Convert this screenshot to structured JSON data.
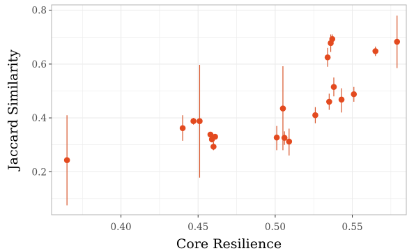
{
  "chart_data": {
    "type": "scatter",
    "xlabel": "Core Resilience",
    "ylabel": "Jaccard Similarity",
    "xlim": [
      0.355,
      0.585
    ],
    "ylim": [
      0.04,
      0.82
    ],
    "x_ticks": [
      0.4,
      0.45,
      0.5,
      0.55
    ],
    "x_tick_labels": [
      "0.40",
      "0.45",
      "0.50",
      "0.55"
    ],
    "y_ticks": [
      0.2,
      0.4,
      0.6,
      0.8
    ],
    "y_tick_labels": [
      "0.2",
      "0.4",
      "0.6",
      "0.8"
    ],
    "grid": true,
    "colors": {
      "point": "#e34a1f",
      "errorbar": "#d7552b",
      "grid": "#ebebeb",
      "border": "#b3b3b3"
    },
    "points": [
      {
        "x": 0.365,
        "y": 0.243,
        "ylo": 0.075,
        "yhi": 0.41
      },
      {
        "x": 0.44,
        "y": 0.362,
        "ylo": 0.315,
        "yhi": 0.41
      },
      {
        "x": 0.447,
        "y": 0.388,
        "ylo": 0.375,
        "yhi": 0.4
      },
      {
        "x": 0.451,
        "y": 0.388,
        "ylo": 0.178,
        "yhi": 0.597
      },
      {
        "x": 0.458,
        "y": 0.338,
        "ylo": 0.33,
        "yhi": 0.345
      },
      {
        "x": 0.459,
        "y": 0.32,
        "ylo": 0.31,
        "yhi": 0.33
      },
      {
        "x": 0.46,
        "y": 0.293,
        "ylo": 0.28,
        "yhi": 0.31
      },
      {
        "x": 0.461,
        "y": 0.33,
        "ylo": 0.32,
        "yhi": 0.34
      },
      {
        "x": 0.501,
        "y": 0.327,
        "ylo": 0.28,
        "yhi": 0.37
      },
      {
        "x": 0.505,
        "y": 0.435,
        "ylo": 0.28,
        "yhi": 0.592
      },
      {
        "x": 0.506,
        "y": 0.326,
        "ylo": 0.3,
        "yhi": 0.35
      },
      {
        "x": 0.509,
        "y": 0.312,
        "ylo": 0.26,
        "yhi": 0.36
      },
      {
        "x": 0.526,
        "y": 0.41,
        "ylo": 0.38,
        "yhi": 0.44
      },
      {
        "x": 0.534,
        "y": 0.625,
        "ylo": 0.59,
        "yhi": 0.66
      },
      {
        "x": 0.535,
        "y": 0.46,
        "ylo": 0.43,
        "yhi": 0.49
      },
      {
        "x": 0.536,
        "y": 0.678,
        "ylo": 0.645,
        "yhi": 0.71
      },
      {
        "x": 0.537,
        "y": 0.693,
        "ylo": 0.675,
        "yhi": 0.71
      },
      {
        "x": 0.538,
        "y": 0.515,
        "ylo": 0.48,
        "yhi": 0.55
      },
      {
        "x": 0.543,
        "y": 0.468,
        "ylo": 0.42,
        "yhi": 0.51
      },
      {
        "x": 0.551,
        "y": 0.488,
        "ylo": 0.46,
        "yhi": 0.515
      },
      {
        "x": 0.565,
        "y": 0.648,
        "ylo": 0.63,
        "yhi": 0.665
      },
      {
        "x": 0.579,
        "y": 0.683,
        "ylo": 0.585,
        "yhi": 0.78
      }
    ]
  }
}
